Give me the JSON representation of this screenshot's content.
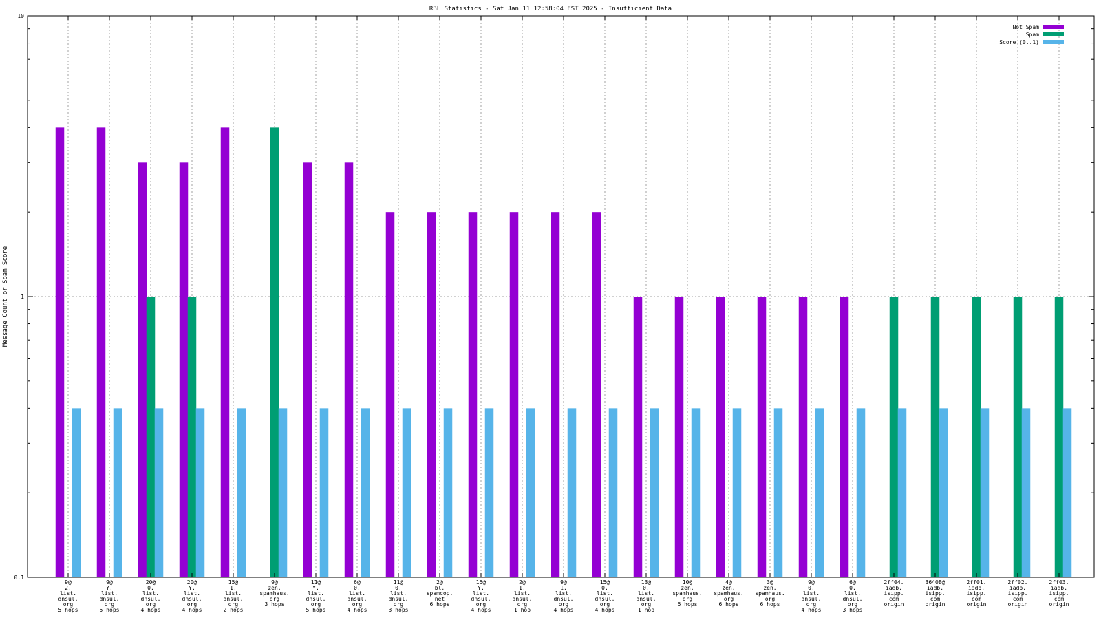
{
  "chart_data": {
    "type": "bar",
    "title": "RBL Statistics - Sat Jan 11 12:58:04 EST 2025 - Insufficient Data",
    "ylabel": "Message Count or Spam Score",
    "xlabel": "",
    "yscale": "log",
    "ylim": [
      0.1,
      10
    ],
    "yticks": [
      "0.1",
      "1",
      "10"
    ],
    "grid": "dotted vertical at categories, dotted horizontal at 1",
    "legend_position": "top-right",
    "categories": [
      [
        "9@",
        "2.",
        "list.",
        "dnsul.",
        "org",
        "5 hops"
      ],
      [
        "9@",
        "Y.",
        "list.",
        "dnsul.",
        "org",
        "5 hops"
      ],
      [
        "20@",
        "0.",
        "list.",
        "dnsul.",
        "org",
        "4 hops"
      ],
      [
        "20@",
        "Y.",
        "list.",
        "dnsul.",
        "org",
        "4 hops"
      ],
      [
        "15@",
        "1.",
        "list.",
        "dnsul.",
        "org",
        "2 hops"
      ],
      [
        "9@",
        "zen.",
        "spamhaus.",
        "org",
        "3 hops"
      ],
      [
        "11@",
        "Y.",
        "list.",
        "dnsul.",
        "org",
        "5 hops"
      ],
      [
        "6@",
        "0.",
        "list.",
        "dnsul.",
        "org",
        "4 hops"
      ],
      [
        "11@",
        "0.",
        "list.",
        "dnsul.",
        "org",
        "3 hops"
      ],
      [
        "2@",
        "bl.",
        "spamcop.",
        "net",
        "6 hops"
      ],
      [
        "15@",
        "Y.",
        "list.",
        "dnsul.",
        "org",
        "4 hops"
      ],
      [
        "2@",
        "1.",
        "list.",
        "dnsul.",
        "org",
        "1 hop"
      ],
      [
        "9@",
        "1.",
        "list.",
        "dnsul.",
        "org",
        "4 hops"
      ],
      [
        "15@",
        "0.",
        "list.",
        "dnsul.",
        "org",
        "4 hops"
      ],
      [
        "13@",
        "0.",
        "list.",
        "dnsul.",
        "org",
        "1 hop"
      ],
      [
        "10@",
        "zen.",
        "spamhaus.",
        "org",
        "6 hops"
      ],
      [
        "4@",
        "zen.",
        "spamhaus.",
        "org",
        "6 hops"
      ],
      [
        "3@",
        "zen.",
        "spamhaus.",
        "org",
        "6 hops"
      ],
      [
        "9@",
        "0.",
        "list.",
        "dnsul.",
        "org",
        "4 hops"
      ],
      [
        "6@",
        "0.",
        "list.",
        "dnsul.",
        "org",
        "3 hops"
      ],
      [
        "2ff04.",
        "iadb.",
        "isipp.",
        "com",
        "origin"
      ],
      [
        "36408@",
        "iadb.",
        "isipp.",
        "com",
        "origin"
      ],
      [
        "2ff01.",
        "iadb.",
        "isipp.",
        "com",
        "origin"
      ],
      [
        "2ff02.",
        "iadb.",
        "isipp.",
        "com",
        "origin"
      ],
      [
        "2ff03.",
        "iadb.",
        "isipp.",
        "com",
        "origin"
      ]
    ],
    "series": [
      {
        "name": "Not Spam",
        "color": "#9400d3",
        "values": [
          4,
          4,
          3,
          3,
          4,
          0,
          3,
          3,
          2,
          2,
          2,
          2,
          2,
          2,
          1,
          1,
          1,
          1,
          1,
          1,
          0,
          0,
          0,
          0,
          0
        ]
      },
      {
        "name": "Spam",
        "color": "#009e73",
        "values": [
          0,
          0,
          1,
          1,
          0,
          4,
          0,
          0,
          0,
          0,
          0,
          0,
          0,
          0,
          0,
          0,
          0,
          0,
          0,
          0,
          1,
          1,
          1,
          1,
          1
        ]
      },
      {
        "name": "Score (0..1)",
        "color": "#56b4e9",
        "values": [
          0.4,
          0.4,
          0.4,
          0.4,
          0.4,
          0.4,
          0.4,
          0.4,
          0.4,
          0.4,
          0.4,
          0.4,
          0.4,
          0.4,
          0.4,
          0.4,
          0.4,
          0.4,
          0.4,
          0.4,
          0.4,
          0.4,
          0.4,
          0.4,
          0.4
        ]
      }
    ]
  }
}
